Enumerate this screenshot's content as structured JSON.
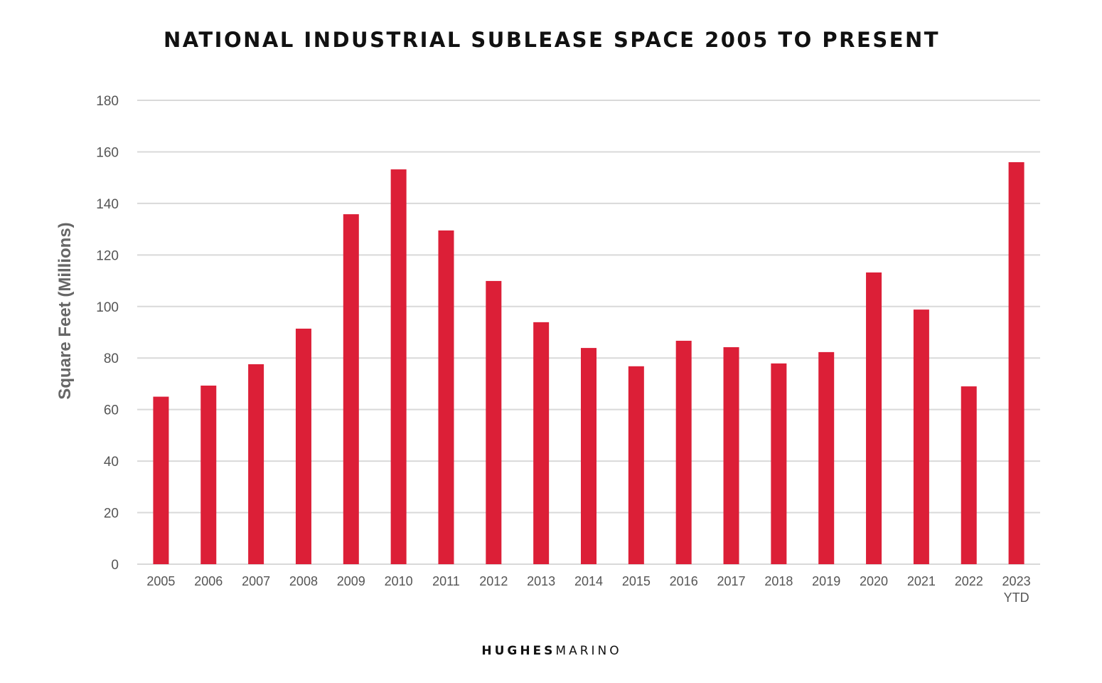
{
  "chart_data": {
    "type": "bar",
    "title": "NATIONAL INDUSTRIAL SUBLEASE SPACE 2005 TO PRESENT",
    "xlabel": "",
    "ylabel": "Square Feet (Millions)",
    "ylim": [
      0,
      180
    ],
    "yticks": [
      0,
      20,
      40,
      60,
      80,
      100,
      120,
      140,
      160,
      180
    ],
    "grid": true,
    "categories": [
      "2005",
      "2006",
      "2007",
      "2008",
      "2009",
      "2010",
      "2011",
      "2012",
      "2013",
      "2014",
      "2015",
      "2016",
      "2017",
      "2018",
      "2019",
      "2020",
      "2021",
      "2022",
      "2023"
    ],
    "category_sublabels": {
      "2023": "YTD"
    },
    "values": [
      65,
      69.3,
      77.6,
      91.4,
      135.8,
      153.2,
      129.5,
      109.9,
      93.9,
      83.9,
      76.8,
      86.7,
      84.2,
      77.9,
      82.3,
      113.2,
      98.8,
      69.0,
      156.0
    ],
    "bar_color": "#dc1f37"
  },
  "footer": {
    "logo_bold": "HUGHES",
    "logo_light": "MARINO"
  }
}
